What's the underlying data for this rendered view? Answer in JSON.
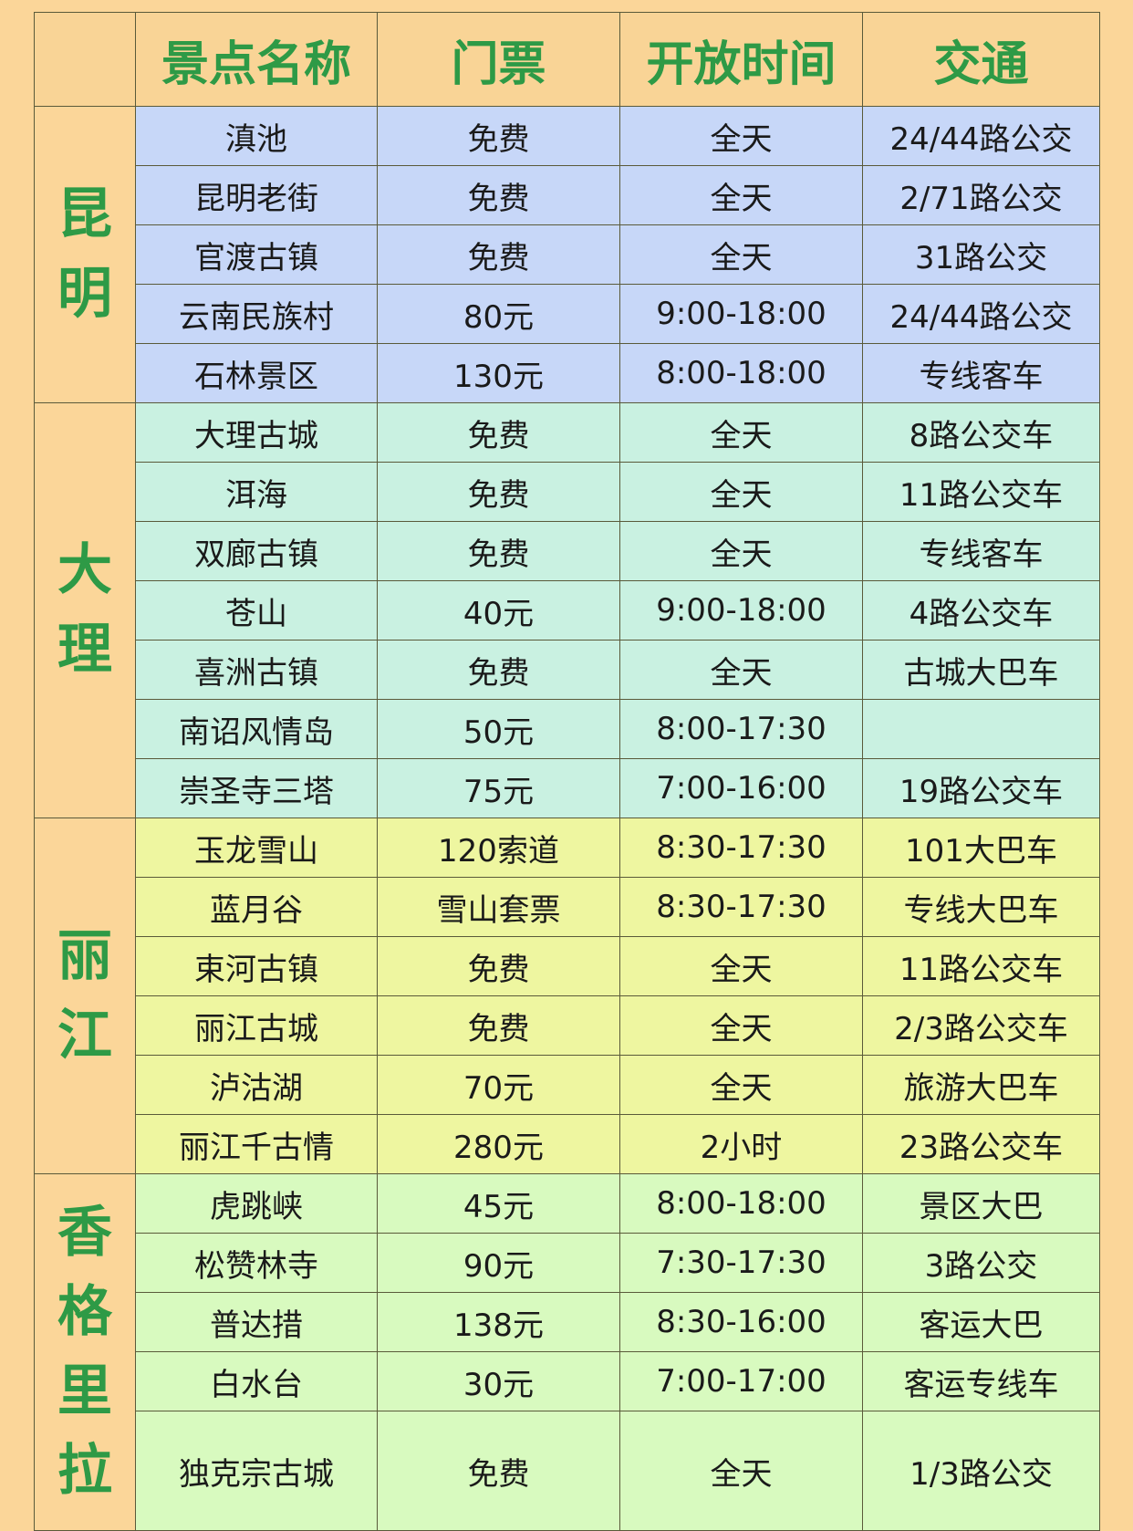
{
  "header": {
    "corner": "",
    "columns": [
      "景点名称",
      "门票",
      "开放时间",
      "交通"
    ]
  },
  "colors": {
    "background": "#fbd699",
    "header_text": "#2e9a46",
    "kunming_rows": "#c7d7f8",
    "dali_rows": "#c9f1e1",
    "lijiang_rows": "#eef6a0",
    "shangrila_rows": "#d8fabf"
  },
  "groups": [
    {
      "name": "昆明",
      "rows": [
        [
          "滇池",
          "免费",
          "全天",
          "24/44路公交"
        ],
        [
          "昆明老街",
          "免费",
          "全天",
          "2/71路公交"
        ],
        [
          "官渡古镇",
          "免费",
          "全天",
          "31路公交"
        ],
        [
          "云南民族村",
          "80元",
          "9:00-18:00",
          "24/44路公交"
        ],
        [
          "石林景区",
          "130元",
          "8:00-18:00",
          "专线客车"
        ]
      ]
    },
    {
      "name": "大理",
      "rows": [
        [
          "大理古城",
          "免费",
          "全天",
          "8路公交车"
        ],
        [
          "洱海",
          "免费",
          "全天",
          "11路公交车"
        ],
        [
          "双廊古镇",
          "免费",
          "全天",
          "专线客车"
        ],
        [
          "苍山",
          "40元",
          "9:00-18:00",
          "4路公交车"
        ],
        [
          "喜洲古镇",
          "免费",
          "全天",
          "古城大巴车"
        ],
        [
          "南诏风情岛",
          "50元",
          "8:00-17:30",
          ""
        ],
        [
          "崇圣寺三塔",
          "75元",
          "7:00-16:00",
          "19路公交车"
        ]
      ]
    },
    {
      "name": "丽江",
      "rows": [
        [
          "玉龙雪山",
          "120索道",
          "8:30-17:30",
          "101大巴车"
        ],
        [
          "蓝月谷",
          "雪山套票",
          "8:30-17:30",
          "专线大巴车"
        ],
        [
          "束河古镇",
          "免费",
          "全天",
          "11路公交车"
        ],
        [
          "丽江古城",
          "免费",
          "全天",
          "2/3路公交车"
        ],
        [
          "泸沽湖",
          "70元",
          "全天",
          "旅游大巴车"
        ],
        [
          "丽江千古情",
          "280元",
          "2小时",
          "23路公交车"
        ]
      ]
    },
    {
      "name": "香格里拉",
      "rows": [
        [
          "虎跳峡",
          "45元",
          "8:00-18:00",
          "景区大巴"
        ],
        [
          "松赞林寺",
          "90元",
          "7:30-17:30",
          "3路公交"
        ],
        [
          "普达措",
          "138元",
          "8:30-16:00",
          "客运大巴"
        ],
        [
          "白水台",
          "30元",
          "7:00-17:00",
          "客运专线车"
        ],
        [
          "独克宗古城",
          "免费",
          "全天",
          "1/3路公交"
        ]
      ]
    }
  ]
}
